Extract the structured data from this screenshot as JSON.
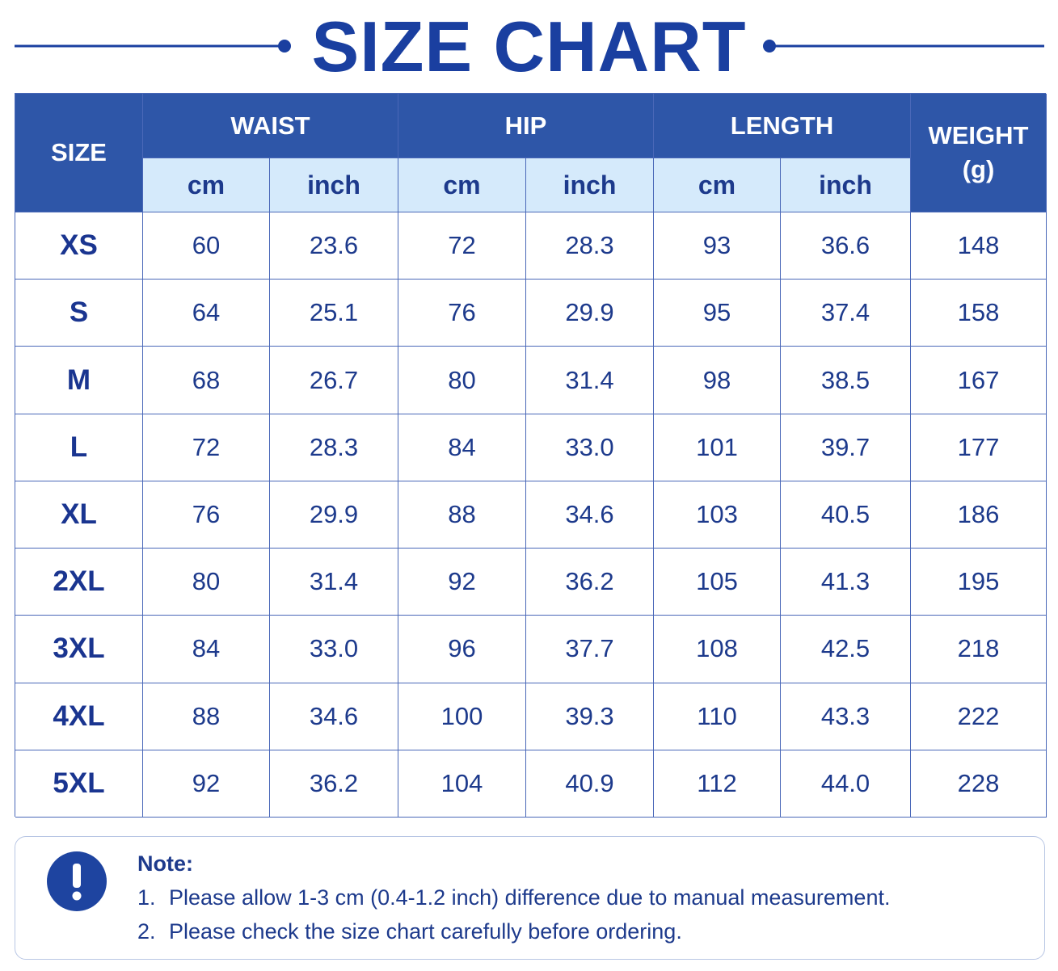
{
  "header": {
    "title": "SIZE CHART"
  },
  "table": {
    "size_header": "SIZE",
    "groups": [
      {
        "label": "WAIST",
        "units": [
          "cm",
          "inch"
        ]
      },
      {
        "label": "HIP",
        "units": [
          "cm",
          "inch"
        ]
      },
      {
        "label": "LENGTH",
        "units": [
          "cm",
          "inch"
        ]
      }
    ],
    "weight_header": [
      "WEIGHT",
      "(g)"
    ],
    "rows": [
      [
        "XS",
        "60",
        "23.6",
        "72",
        "28.3",
        "93",
        "36.6",
        "148"
      ],
      [
        "S",
        "64",
        "25.1",
        "76",
        "29.9",
        "95",
        "37.4",
        "158"
      ],
      [
        "M",
        "68",
        "26.7",
        "80",
        "31.4",
        "98",
        "38.5",
        "167"
      ],
      [
        "L",
        "72",
        "28.3",
        "84",
        "33.0",
        "101",
        "39.7",
        "177"
      ],
      [
        "XL",
        "76",
        "29.9",
        "88",
        "34.6",
        "103",
        "40.5",
        "186"
      ],
      [
        "2XL",
        "80",
        "31.4",
        "92",
        "36.2",
        "105",
        "41.3",
        "195"
      ],
      [
        "3XL",
        "84",
        "33.0",
        "96",
        "37.7",
        "108",
        "42.5",
        "218"
      ],
      [
        "4XL",
        "88",
        "34.6",
        "100",
        "39.3",
        "110",
        "43.3",
        "222"
      ],
      [
        "5XL",
        "92",
        "36.2",
        "104",
        "40.9",
        "112",
        "44.0",
        "228"
      ]
    ]
  },
  "note": {
    "title": "Note:",
    "items": [
      {
        "number": "1.",
        "text": "Please allow 1-3 cm (0.4-1.2 inch) difference due to manual measurement."
      },
      {
        "number": "2.",
        "text": "Please check the size chart carefully before ordering."
      }
    ]
  }
}
